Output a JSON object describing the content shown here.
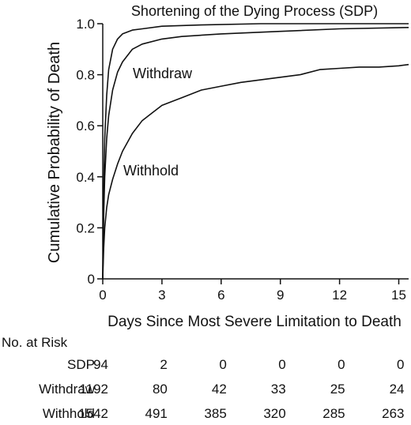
{
  "chart_data": {
    "type": "line",
    "title": "",
    "xlabel": "Days Since Most Severe Limitation to Death",
    "ylabel": "Cumulative Probability of Death",
    "xlim": [
      0,
      15.5
    ],
    "ylim": [
      0,
      1.0
    ],
    "xticks": [
      0,
      3,
      6,
      9,
      12,
      15
    ],
    "yticks": [
      0,
      0.2,
      0.4,
      0.6,
      0.8,
      1.0
    ],
    "ytick_labels": [
      "0",
      "0.2",
      "0.4",
      "0.6",
      "0.8",
      "1.0"
    ],
    "grid": false,
    "series": [
      {
        "name": "Shortening of the Dying Process (SDP)",
        "label_position": "top",
        "points": [
          [
            0,
            0
          ],
          [
            0.05,
            0.35
          ],
          [
            0.1,
            0.55
          ],
          [
            0.2,
            0.72
          ],
          [
            0.3,
            0.82
          ],
          [
            0.5,
            0.9
          ],
          [
            0.75,
            0.94
          ],
          [
            1.0,
            0.96
          ],
          [
            1.5,
            0.975
          ],
          [
            2,
            0.98
          ],
          [
            3,
            0.99
          ],
          [
            5,
            0.995
          ],
          [
            8,
            1.0
          ],
          [
            15.5,
            1.0
          ]
        ]
      },
      {
        "name": "Withdraw",
        "label_position": "middle",
        "points": [
          [
            0,
            0
          ],
          [
            0.05,
            0.25
          ],
          [
            0.1,
            0.4
          ],
          [
            0.2,
            0.55
          ],
          [
            0.3,
            0.64
          ],
          [
            0.5,
            0.74
          ],
          [
            0.75,
            0.81
          ],
          [
            1,
            0.85
          ],
          [
            1.5,
            0.9
          ],
          [
            2,
            0.92
          ],
          [
            3,
            0.94
          ],
          [
            4,
            0.95
          ],
          [
            6,
            0.96
          ],
          [
            9,
            0.97
          ],
          [
            12,
            0.98
          ],
          [
            15.5,
            0.985
          ]
        ]
      },
      {
        "name": "Withhold",
        "label_position": "lower",
        "points": [
          [
            0,
            0
          ],
          [
            0.05,
            0.12
          ],
          [
            0.1,
            0.2
          ],
          [
            0.2,
            0.28
          ],
          [
            0.3,
            0.33
          ],
          [
            0.5,
            0.39
          ],
          [
            0.75,
            0.45
          ],
          [
            1,
            0.5
          ],
          [
            1.5,
            0.57
          ],
          [
            2,
            0.62
          ],
          [
            2.5,
            0.65
          ],
          [
            3,
            0.68
          ],
          [
            4,
            0.71
          ],
          [
            5,
            0.74
          ],
          [
            6,
            0.755
          ],
          [
            7,
            0.77
          ],
          [
            8,
            0.78
          ],
          [
            9,
            0.79
          ],
          [
            10,
            0.8
          ],
          [
            11,
            0.82
          ],
          [
            12,
            0.825
          ],
          [
            13,
            0.83
          ],
          [
            14,
            0.83
          ],
          [
            15,
            0.835
          ],
          [
            15.5,
            0.84
          ]
        ]
      }
    ]
  },
  "risk_table": {
    "title": "No. at Risk",
    "rows": [
      {
        "label": "SDP",
        "values": [
          "94",
          "2",
          "0",
          "0",
          "0",
          "0"
        ]
      },
      {
        "label": "Withdraw",
        "values": [
          "1192",
          "80",
          "42",
          "33",
          "25",
          "24"
        ]
      },
      {
        "label": "Withhold",
        "values": [
          "1542",
          "491",
          "385",
          "320",
          "285",
          "263"
        ]
      }
    ]
  }
}
